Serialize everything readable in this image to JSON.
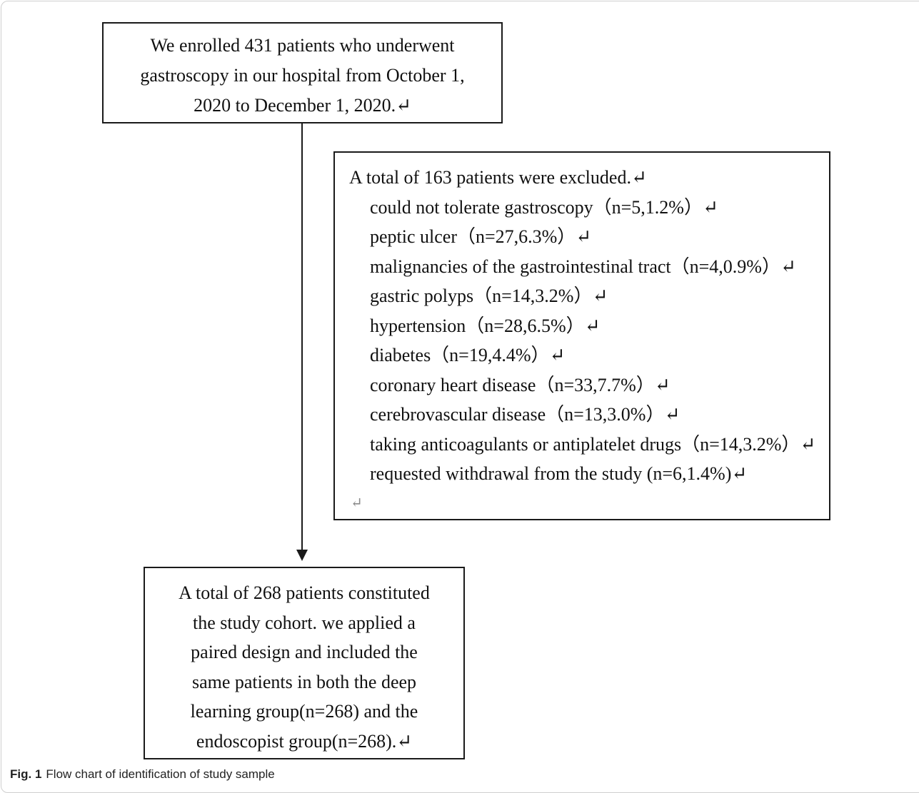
{
  "enrollment_box": {
    "lines": [
      "We enrolled 431 patients who underwent",
      "gastroscopy in our hospital from October 1,",
      "2020 to December 1, 2020.↵"
    ]
  },
  "exclusion_box": {
    "heading": "A total of 163 patients were excluded.↵",
    "items": [
      "could not tolerate gastroscopy（n=5,1.2%）↵",
      "peptic ulcer（n=27,6.3%）↵",
      "malignancies of the gastrointestinal tract（n=4,0.9%）↵",
      "gastric polyps（n=14,3.2%）↵",
      "hypertension（n=28,6.5%）↵",
      "diabetes（n=19,4.4%）↵",
      "coronary heart disease（n=33,7.7%）↵",
      "cerebrovascular disease（n=13,3.0%）↵",
      "taking anticoagulants or antiplatelet drugs（n=14,3.2%）↵",
      "requested withdrawal from the study (n=6,1.4%)↵"
    ],
    "trailing_mark": "↵"
  },
  "cohort_box": {
    "lines": [
      "A total of 268 patients constituted",
      "the study cohort. we applied a",
      "paired design and included the",
      "same patients in both the deep",
      "learning group(n=268) and the",
      "endoscopist group(n=268).↵"
    ]
  },
  "caption": {
    "label": "Fig. 1",
    "text": "Flow chart of identification of study sample"
  }
}
